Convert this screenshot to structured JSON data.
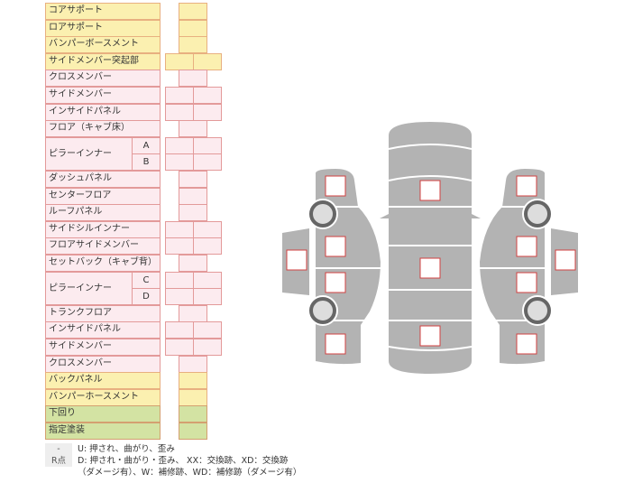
{
  "rows": [
    {
      "label": "コアサポート",
      "color": "y",
      "cells": 1
    },
    {
      "label": "ロアサポート",
      "color": "y",
      "cells": 1
    },
    {
      "label": "バンパーボースメント",
      "color": "y",
      "cells": 1
    },
    {
      "label": "サイドメンバー突起部",
      "color": "y",
      "cells": 2
    },
    {
      "label": "クロスメンバー",
      "color": "p",
      "cells": 1
    },
    {
      "label": "サイドメンバー",
      "color": "p",
      "cells": 2
    },
    {
      "label": "インサイドパネル",
      "color": "p",
      "cells": 2
    },
    {
      "label": "フロア（キャブ床）",
      "color": "p",
      "cells": 1
    },
    {
      "label": "ピラーインナー",
      "sub": "A",
      "color": "p",
      "cells": 2
    },
    {
      "label": "",
      "sub": "B",
      "color": "p",
      "cells": 2
    },
    {
      "label": "ダッシュパネル",
      "color": "p",
      "cells": 1
    },
    {
      "label": "センターフロア",
      "color": "p",
      "cells": 1
    },
    {
      "label": "ルーフパネル",
      "color": "p",
      "cells": 1
    },
    {
      "label": "サイドシルインナー",
      "color": "p",
      "cells": 2
    },
    {
      "label": "フロアサイドメンバー",
      "color": "p",
      "cells": 2
    },
    {
      "label": "セットバック（キャブ背）",
      "color": "p",
      "cells": 1
    },
    {
      "label": "ピラーインナー",
      "sub": "C",
      "color": "p",
      "cells": 2
    },
    {
      "label": "",
      "sub": "D",
      "color": "p",
      "cells": 2
    },
    {
      "label": "トランクフロア",
      "color": "p",
      "cells": 1
    },
    {
      "label": "インサイドパネル",
      "color": "p",
      "cells": 2
    },
    {
      "label": "サイドメンバー",
      "color": "p",
      "cells": 2
    },
    {
      "label": "クロスメンバー",
      "color": "p",
      "cells": 1
    },
    {
      "label": "バックパネル",
      "color": "y",
      "cells": 1
    },
    {
      "label": "バンパーホースメント",
      "color": "y",
      "cells": 1
    },
    {
      "label": "下回り",
      "color": "g",
      "cells": 1
    },
    {
      "label": "指定塗装",
      "color": "g",
      "cells": 1
    }
  ],
  "legend": {
    "tag1": "-",
    "text1": "U: 押され、曲がり、歪み",
    "tag2": "R点",
    "text2": "D: 押され・曲がり・歪み、 XX：交換跡、XD：交換跡",
    "text3": "（ダメージ有）、W：補修跡、WD：補修跡（ダメージ有）"
  },
  "colors": {
    "body": "#b3b3b3",
    "marker": "#d04040",
    "wheel": "#666666"
  }
}
